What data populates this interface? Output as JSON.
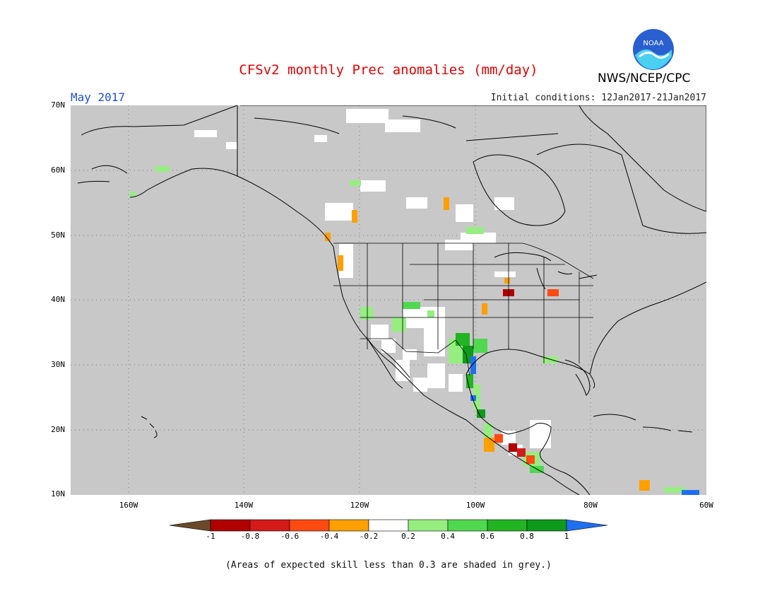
{
  "header": {
    "title": "CFSv2 monthly Prec anomalies (mm/day)",
    "month": "May 2017",
    "initial_conditions": "Initial conditions: 12Jan2017-21Jan2017",
    "agency": "NWS/NCEP/CPC",
    "logo_text": "NOAA"
  },
  "map": {
    "lon_range": [
      -170,
      -60
    ],
    "lat_range": [
      10,
      70
    ],
    "background_color": "#c8c8c8",
    "grid": true,
    "lat_labels": [
      "70N",
      "60N",
      "50N",
      "40N",
      "30N",
      "20N",
      "10N"
    ],
    "lon_labels": [
      "160W",
      "140W",
      "120W",
      "100W",
      "80W",
      "60W"
    ]
  },
  "colorbar": {
    "tick_labels": [
      "-1",
      "-0.8",
      "-0.6",
      "-0.4",
      "-0.2",
      "0.2",
      "0.4",
      "0.6",
      "0.8",
      "1"
    ],
    "colors": [
      "#6b4a2b",
      "#b00000",
      "#d51a1a",
      "#ff4a12",
      "#ff9f00",
      "#ffffff",
      "#96ee80",
      "#50d850",
      "#22b422",
      "#0e9a1c",
      "#1e6ff0"
    ]
  },
  "footnote": "(Areas of expected skill less than 0.3 are shaded in grey.)"
}
